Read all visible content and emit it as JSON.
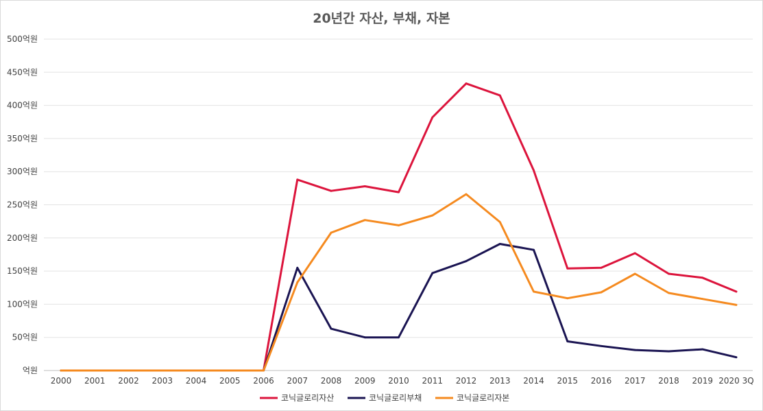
{
  "chart_data": {
    "type": "line",
    "title": "20년간 자산, 부채, 자본",
    "categories": [
      "2000",
      "2001",
      "2002",
      "2003",
      "2004",
      "2005",
      "2006",
      "2007",
      "2008",
      "2009",
      "2010",
      "2011",
      "2012",
      "2013",
      "2014",
      "2015",
      "2016",
      "2017",
      "2018",
      "2019",
      "2020 3Q"
    ],
    "y_tick_labels": [
      "억원",
      "50억원",
      "100억원",
      "150억원",
      "200억원",
      "250억원",
      "300억원",
      "350억원",
      "400억원",
      "450억원",
      "500억원"
    ],
    "ylim": [
      0,
      500
    ],
    "grid": true,
    "legend_position": "bottom",
    "series": [
      {
        "name": "코닉글로리자산",
        "color": "#dc143c",
        "values": [
          0,
          0,
          0,
          0,
          0,
          0,
          0,
          288,
          271,
          278,
          269,
          382,
          433,
          415,
          302,
          154,
          155,
          177,
          146,
          140,
          119
        ]
      },
      {
        "name": "코닉글로리부채",
        "color": "#1a1452",
        "values": [
          0,
          0,
          0,
          0,
          0,
          0,
          0,
          155,
          63,
          50,
          50,
          147,
          165,
          191,
          182,
          44,
          37,
          31,
          29,
          32,
          20
        ]
      },
      {
        "name": "코닉글로리자본",
        "color": "#f58a1f",
        "values": [
          0,
          0,
          0,
          0,
          0,
          0,
          0,
          133,
          208,
          227,
          219,
          234,
          266,
          224,
          119,
          109,
          118,
          146,
          117,
          108,
          99
        ]
      }
    ]
  }
}
